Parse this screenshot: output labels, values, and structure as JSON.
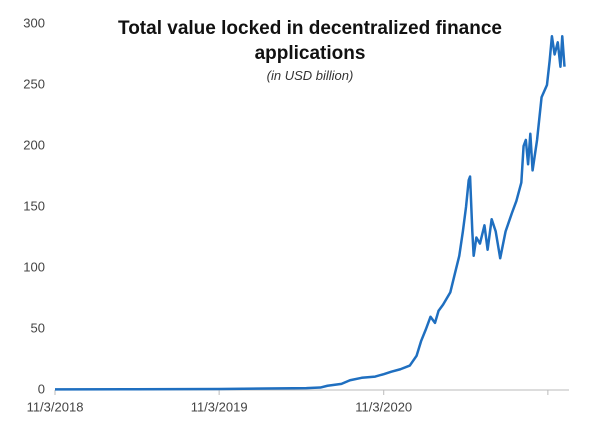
{
  "chart_data": {
    "type": "line",
    "title": "Total value locked in decentralized finance applications",
    "subtitle": "(in USD billion)",
    "x": [
      "2018-11-03",
      "2019-05-01",
      "2019-11-03",
      "2020-02-15",
      "2020-05-15",
      "2020-06-15",
      "2020-07-01",
      "2020-08-01",
      "2020-08-20",
      "2020-09-15",
      "2020-10-15",
      "2020-11-03",
      "2020-11-20",
      "2020-12-10",
      "2020-12-31",
      "2021-01-15",
      "2021-01-25",
      "2021-02-05",
      "2021-02-15",
      "2021-02-25",
      "2021-03-05",
      "2021-03-15",
      "2021-03-31",
      "2021-04-10",
      "2021-04-20",
      "2021-04-28",
      "2021-05-05",
      "2021-05-11",
      "2021-05-14",
      "2021-05-19",
      "2021-05-22",
      "2021-05-28",
      "2021-06-05",
      "2021-06-15",
      "2021-06-22",
      "2021-07-01",
      "2021-07-10",
      "2021-07-20",
      "2021-08-01",
      "2021-08-15",
      "2021-08-25",
      "2021-09-05",
      "2021-09-10",
      "2021-09-15",
      "2021-09-20",
      "2021-09-25",
      "2021-09-30",
      "2021-10-10",
      "2021-10-20",
      "2021-11-01",
      "2021-11-07",
      "2021-11-12",
      "2021-11-18",
      "2021-11-25",
      "2021-12-01",
      "2021-12-05",
      "2021-12-10"
    ],
    "series": [
      {
        "name": "Total value locked",
        "color": "#1f6fc0",
        "values": [
          0.5,
          0.6,
          0.8,
          1.2,
          1.5,
          2,
          3.5,
          5,
          8,
          10,
          11,
          13,
          15,
          17,
          20,
          28,
          40,
          50,
          60,
          55,
          65,
          70,
          80,
          95,
          110,
          130,
          150,
          172,
          175,
          130,
          110,
          125,
          120,
          135,
          115,
          140,
          130,
          108,
          130,
          145,
          155,
          170,
          200,
          205,
          185,
          210,
          180,
          205,
          240,
          250,
          270,
          290,
          275,
          285,
          265,
          290,
          265
        ]
      }
    ],
    "xlim": [
      "2018-11-03",
      "2021-12-20"
    ],
    "xticks": [
      {
        "value": "2018-11-03",
        "label": "11/3/2018"
      },
      {
        "value": "2019-11-03",
        "label": "11/3/2019"
      },
      {
        "value": "2020-11-03",
        "label": "11/3/2020"
      },
      {
        "value": "2021-11-03",
        "label": ""
      }
    ],
    "ylim": [
      0,
      300
    ],
    "yticks": [
      0,
      50,
      100,
      150,
      200,
      250,
      300
    ],
    "grid": false
  }
}
